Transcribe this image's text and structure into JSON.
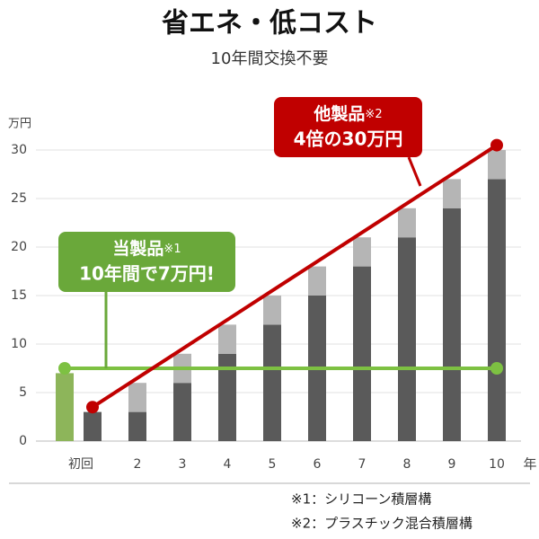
{
  "chart_data": {
    "type": "bar",
    "title": "省エネ・低コスト",
    "subtitle": "10年間交換不要",
    "y_unit": "万円",
    "x_unit": "年",
    "categories": [
      "初回",
      "2",
      "3",
      "4",
      "5",
      "6",
      "7",
      "8",
      "9",
      "10"
    ],
    "ylim": [
      0,
      30
    ],
    "yticks": [
      0,
      5,
      10,
      15,
      20,
      25,
      30
    ],
    "grid": true,
    "series": [
      {
        "color": "#8db55a",
        "role": "own",
        "values": [
          7,
          null,
          null,
          null,
          null,
          null,
          null,
          null,
          null,
          null
        ]
      },
      {
        "color": "#5a5a5a",
        "role": "stack",
        "values": [
          3,
          3,
          6,
          9,
          12,
          15,
          18,
          21,
          24,
          27
        ]
      },
      {
        "color": "#b5b5b5",
        "role": "stack",
        "values": [
          null,
          3,
          3,
          3,
          3,
          3,
          3,
          3,
          3,
          3
        ]
      }
    ],
    "lines": [
      {
        "color": "#7dc142",
        "values": [
          7.5,
          7.5,
          7.5,
          7.5,
          7.5,
          7.5,
          7.5,
          7.5,
          7.5,
          7.5
        ]
      },
      {
        "color": "#c00000",
        "values": [
          3.5,
          6.5,
          9.5,
          12.5,
          15.5,
          18.5,
          21.5,
          24.5,
          27.5,
          30.5
        ]
      }
    ],
    "annotations": [
      {
        "text": "他製品",
        "note": "※2",
        "text2": "4倍の30万円",
        "color": "#c00000"
      },
      {
        "text": "当製品",
        "note": "※1",
        "text2": "10年間で7万円!",
        "color": "#6aa83a"
      }
    ],
    "footnotes": [
      "※1：シリコーン積層構",
      "※2：プラスチック混合積層構"
    ]
  }
}
